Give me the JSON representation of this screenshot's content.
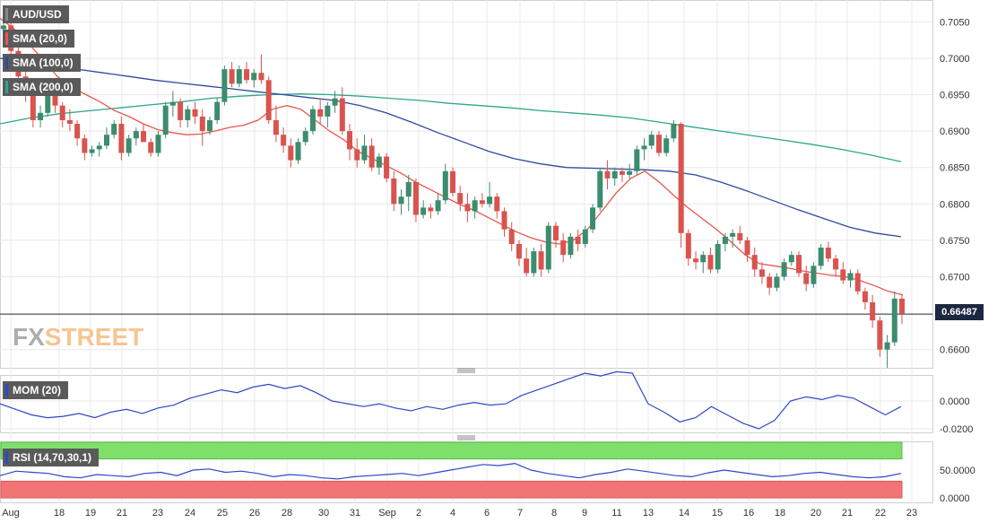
{
  "symbol_label": "AUD/USD",
  "indicator_labels": {
    "sma20": "SMA (20,0)",
    "sma100": "SMA (100,0)",
    "sma200": "SMA (200,0)",
    "mom": "MOM (20)",
    "rsi": "RSI (14,70,30,1)"
  },
  "last_price": "0.66487",
  "logo": {
    "fx": "FX",
    "street": "STREET"
  },
  "colors": {
    "up": "#3c8c6e",
    "down": "#d9534f",
    "sma20": "#e8574e",
    "sma100": "#2e4a9e",
    "sma200": "#2aa88a",
    "mom": "#2d47c8",
    "rsi": "#2d47c8",
    "rsi_overbought": "#7ee06b",
    "rsi_oversold": "#f27474",
    "grid": "#e8e8e8"
  },
  "chart_data": {
    "type": "candlestick",
    "title": "AUD/USD",
    "price_axis": {
      "ticks": [
        "0.7050",
        "0.7000",
        "0.6950",
        "0.6900",
        "0.6850",
        "0.6800",
        "0.6750",
        "0.6700",
        "0.6600"
      ],
      "ylim": [
        0.6575,
        0.708
      ]
    },
    "x_tick_labels": [
      "Aug",
      "18",
      "19",
      "21",
      "23",
      "24",
      "25",
      "26",
      "28",
      "30",
      "31",
      "Sep",
      "2",
      "4",
      "6",
      "7",
      "8",
      "9",
      "11",
      "13",
      "14",
      "15",
      "16",
      "18",
      "20",
      "21",
      "22",
      "23"
    ],
    "candles": [
      [
        0.704,
        0.706,
        0.702,
        0.7045
      ],
      [
        0.7045,
        0.7055,
        0.7,
        0.701
      ],
      [
        0.701,
        0.7015,
        0.696,
        0.6975
      ],
      [
        0.6975,
        0.6985,
        0.694,
        0.695
      ],
      [
        0.695,
        0.696,
        0.6905,
        0.6915
      ],
      [
        0.6915,
        0.6935,
        0.6905,
        0.6925
      ],
      [
        0.6925,
        0.6965,
        0.692,
        0.6955
      ],
      [
        0.6955,
        0.696,
        0.6925,
        0.6935
      ],
      [
        0.6935,
        0.694,
        0.6905,
        0.6915
      ],
      [
        0.6915,
        0.693,
        0.69,
        0.691
      ],
      [
        0.691,
        0.6915,
        0.688,
        0.689
      ],
      [
        0.689,
        0.6895,
        0.686,
        0.687
      ],
      [
        0.687,
        0.688,
        0.6865,
        0.6875
      ],
      [
        0.6875,
        0.6885,
        0.6865,
        0.688
      ],
      [
        0.688,
        0.6905,
        0.6875,
        0.6895
      ],
      [
        0.6895,
        0.6915,
        0.689,
        0.691
      ],
      [
        0.691,
        0.692,
        0.686,
        0.687
      ],
      [
        0.687,
        0.6895,
        0.6865,
        0.689
      ],
      [
        0.689,
        0.6905,
        0.688,
        0.69
      ],
      [
        0.69,
        0.691,
        0.6885,
        0.6885
      ],
      [
        0.6885,
        0.689,
        0.6865,
        0.687
      ],
      [
        0.687,
        0.69,
        0.6865,
        0.6895
      ],
      [
        0.6895,
        0.694,
        0.689,
        0.6935
      ],
      [
        0.6935,
        0.6955,
        0.692,
        0.694
      ],
      [
        0.694,
        0.6945,
        0.6905,
        0.6915
      ],
      [
        0.6915,
        0.6935,
        0.6905,
        0.693
      ],
      [
        0.693,
        0.694,
        0.691,
        0.692
      ],
      [
        0.692,
        0.693,
        0.688,
        0.69
      ],
      [
        0.69,
        0.692,
        0.6895,
        0.6915
      ],
      [
        0.6915,
        0.6945,
        0.691,
        0.694
      ],
      [
        0.694,
        0.699,
        0.6935,
        0.6985
      ],
      [
        0.6985,
        0.6995,
        0.696,
        0.6965
      ],
      [
        0.6965,
        0.699,
        0.696,
        0.6985
      ],
      [
        0.6985,
        0.6995,
        0.6965,
        0.697
      ],
      [
        0.697,
        0.6985,
        0.696,
        0.698
      ],
      [
        0.698,
        0.7005,
        0.6965,
        0.697
      ],
      [
        0.697,
        0.6975,
        0.691,
        0.6915
      ],
      [
        0.6915,
        0.6935,
        0.6885,
        0.6895
      ],
      [
        0.6895,
        0.6905,
        0.687,
        0.688
      ],
      [
        0.688,
        0.689,
        0.685,
        0.686
      ],
      [
        0.686,
        0.689,
        0.6855,
        0.6885
      ],
      [
        0.6885,
        0.6905,
        0.688,
        0.69
      ],
      [
        0.69,
        0.6935,
        0.6895,
        0.693
      ],
      [
        0.693,
        0.6945,
        0.691,
        0.692
      ],
      [
        0.692,
        0.694,
        0.6905,
        0.6935
      ],
      [
        0.6935,
        0.6955,
        0.6925,
        0.6945
      ],
      [
        0.6945,
        0.696,
        0.6895,
        0.69
      ],
      [
        0.69,
        0.691,
        0.686,
        0.6875
      ],
      [
        0.6875,
        0.689,
        0.685,
        0.686
      ],
      [
        0.686,
        0.6895,
        0.6855,
        0.688
      ],
      [
        0.688,
        0.689,
        0.6845,
        0.685
      ],
      [
        0.685,
        0.687,
        0.684,
        0.6865
      ],
      [
        0.6865,
        0.687,
        0.683,
        0.6835
      ],
      [
        0.6835,
        0.6845,
        0.679,
        0.68
      ],
      [
        0.68,
        0.682,
        0.6785,
        0.681
      ],
      [
        0.681,
        0.684,
        0.679,
        0.683
      ],
      [
        0.683,
        0.6835,
        0.6775,
        0.6785
      ],
      [
        0.6785,
        0.6805,
        0.678,
        0.6795
      ],
      [
        0.6795,
        0.68,
        0.678,
        0.679
      ],
      [
        0.679,
        0.6815,
        0.6785,
        0.6805
      ],
      [
        0.6805,
        0.6855,
        0.68,
        0.6845
      ],
      [
        0.6845,
        0.685,
        0.681,
        0.6815
      ],
      [
        0.6815,
        0.6825,
        0.679,
        0.68
      ],
      [
        0.68,
        0.6815,
        0.6775,
        0.679
      ],
      [
        0.679,
        0.681,
        0.678,
        0.6805
      ],
      [
        0.6805,
        0.6815,
        0.6795,
        0.68
      ],
      [
        0.68,
        0.683,
        0.6795,
        0.681
      ],
      [
        0.681,
        0.6815,
        0.678,
        0.679
      ],
      [
        0.679,
        0.6795,
        0.6755,
        0.6765
      ],
      [
        0.6765,
        0.6775,
        0.6735,
        0.6745
      ],
      [
        0.6745,
        0.675,
        0.6715,
        0.6725
      ],
      [
        0.6725,
        0.674,
        0.67,
        0.6705
      ],
      [
        0.6705,
        0.674,
        0.67,
        0.6735
      ],
      [
        0.6735,
        0.6745,
        0.67,
        0.671
      ],
      [
        0.671,
        0.6775,
        0.6705,
        0.677
      ],
      [
        0.677,
        0.6775,
        0.674,
        0.675
      ],
      [
        0.675,
        0.676,
        0.672,
        0.673
      ],
      [
        0.673,
        0.676,
        0.6725,
        0.6755
      ],
      [
        0.6755,
        0.6765,
        0.6735,
        0.6745
      ],
      [
        0.6745,
        0.677,
        0.674,
        0.6765
      ],
      [
        0.6765,
        0.68,
        0.676,
        0.6795
      ],
      [
        0.6795,
        0.685,
        0.679,
        0.6845
      ],
      [
        0.6845,
        0.686,
        0.682,
        0.6835
      ],
      [
        0.6835,
        0.685,
        0.6825,
        0.6845
      ],
      [
        0.6845,
        0.685,
        0.683,
        0.684
      ],
      [
        0.684,
        0.6855,
        0.6835,
        0.6845
      ],
      [
        0.6845,
        0.688,
        0.684,
        0.6875
      ],
      [
        0.6875,
        0.689,
        0.686,
        0.688
      ],
      [
        0.688,
        0.69,
        0.6875,
        0.6895
      ],
      [
        0.6895,
        0.69,
        0.6865,
        0.687
      ],
      [
        0.687,
        0.6895,
        0.6865,
        0.689
      ],
      [
        0.689,
        0.6915,
        0.6885,
        0.691
      ],
      [
        0.691,
        0.6912,
        0.674,
        0.676
      ],
      [
        0.676,
        0.6765,
        0.6715,
        0.6725
      ],
      [
        0.6725,
        0.6735,
        0.671,
        0.672
      ],
      [
        0.672,
        0.6735,
        0.6705,
        0.673
      ],
      [
        0.673,
        0.674,
        0.6705,
        0.671
      ],
      [
        0.671,
        0.675,
        0.6705,
        0.6745
      ],
      [
        0.6745,
        0.676,
        0.6735,
        0.6755
      ],
      [
        0.6755,
        0.6765,
        0.674,
        0.676
      ],
      [
        0.676,
        0.677,
        0.6745,
        0.675
      ],
      [
        0.675,
        0.6755,
        0.672,
        0.673
      ],
      [
        0.673,
        0.674,
        0.67,
        0.671
      ],
      [
        0.671,
        0.672,
        0.669,
        0.67
      ],
      [
        0.67,
        0.6705,
        0.6675,
        0.6685
      ],
      [
        0.6685,
        0.6705,
        0.668,
        0.67
      ],
      [
        0.67,
        0.6725,
        0.6695,
        0.672
      ],
      [
        0.672,
        0.6735,
        0.6715,
        0.673
      ],
      [
        0.673,
        0.6735,
        0.67,
        0.6705
      ],
      [
        0.6705,
        0.6715,
        0.668,
        0.669
      ],
      [
        0.669,
        0.672,
        0.6685,
        0.6715
      ],
      [
        0.6715,
        0.6745,
        0.671,
        0.674
      ],
      [
        0.674,
        0.6748,
        0.672,
        0.6725
      ],
      [
        0.6725,
        0.673,
        0.67,
        0.671
      ],
      [
        0.671,
        0.672,
        0.669,
        0.6695
      ],
      [
        0.6695,
        0.671,
        0.6685,
        0.6705
      ],
      [
        0.6705,
        0.671,
        0.6675,
        0.668
      ],
      [
        0.668,
        0.6685,
        0.6655,
        0.6665
      ],
      [
        0.6665,
        0.6675,
        0.663,
        0.664
      ],
      [
        0.664,
        0.6645,
        0.659,
        0.66
      ],
      [
        0.66,
        0.662,
        0.6575,
        0.661
      ],
      [
        0.661,
        0.668,
        0.6605,
        0.667
      ],
      [
        0.667,
        0.6675,
        0.6635,
        0.6649
      ]
    ],
    "series": [
      {
        "name": "SMA (20,0)",
        "values": [
          0.7055,
          0.704,
          0.702,
          0.6998,
          0.6975,
          0.696,
          0.695,
          0.694,
          0.6928,
          0.692,
          0.691,
          0.6902,
          0.6898,
          0.6895,
          0.6896,
          0.69,
          0.6905,
          0.6908,
          0.6915,
          0.693,
          0.6935,
          0.693,
          0.6915,
          0.69,
          0.6888,
          0.6872,
          0.6862,
          0.6852,
          0.6842,
          0.683,
          0.682,
          0.681,
          0.68,
          0.6792,
          0.6782,
          0.6772,
          0.6762,
          0.6754,
          0.6748,
          0.6745,
          0.675,
          0.6765,
          0.679,
          0.6815,
          0.6835,
          0.6845,
          0.683,
          0.6812,
          0.6795,
          0.678,
          0.6765,
          0.6748,
          0.673,
          0.6718,
          0.6715,
          0.6712,
          0.6708,
          0.6705,
          0.6702,
          0.67,
          0.6695,
          0.6688,
          0.668,
          0.6675
        ]
      },
      {
        "name": "SMA (100,0)",
        "values": [
          0.7,
          0.6995,
          0.699,
          0.6985,
          0.698,
          0.6975,
          0.697,
          0.6966,
          0.6962,
          0.6958,
          0.6954,
          0.695,
          0.6946,
          0.6942,
          0.6935,
          0.6925,
          0.6912,
          0.6898,
          0.6885,
          0.6872,
          0.6862,
          0.6855,
          0.685,
          0.6849,
          0.6848,
          0.6847,
          0.6845,
          0.684,
          0.683,
          0.6818,
          0.6805,
          0.6792,
          0.678,
          0.6768,
          0.676,
          0.6755
        ]
      },
      {
        "name": "SMA (200,0)",
        "values": [
          0.691,
          0.6918,
          0.6924,
          0.6928,
          0.6932,
          0.6936,
          0.694,
          0.6945,
          0.6948,
          0.695,
          0.6951,
          0.695,
          0.6948,
          0.6945,
          0.6942,
          0.6938,
          0.6935,
          0.6932,
          0.6928,
          0.6925,
          0.6922,
          0.6918,
          0.6912,
          0.6906,
          0.69,
          0.6894,
          0.6888,
          0.6882,
          0.6875,
          0.6867,
          0.6858
        ]
      },
      {
        "name": "MOM (20)",
        "values": [
          -0.002,
          -0.006,
          -0.01,
          -0.012,
          -0.011,
          -0.009,
          -0.012,
          -0.008,
          -0.006,
          -0.009,
          -0.005,
          -0.003,
          0.002,
          0.005,
          0.008,
          0.006,
          0.01,
          0.012,
          0.009,
          0.011,
          0.006,
          0.0,
          -0.002,
          -0.004,
          -0.002,
          -0.005,
          -0.007,
          -0.004,
          -0.006,
          -0.003,
          -0.001,
          -0.003,
          -0.002,
          0.004,
          0.008,
          0.012,
          0.016,
          0.02,
          0.018,
          0.021,
          0.02,
          -0.002,
          -0.008,
          -0.015,
          -0.012,
          -0.004,
          -0.01,
          -0.016,
          -0.02,
          -0.014,
          0.0,
          0.003,
          0.001,
          0.004,
          0.002,
          -0.004,
          -0.01,
          -0.004
        ]
      },
      {
        "name": "RSI (14,70,30,1)",
        "values": [
          40,
          48,
          46,
          44,
          38,
          36,
          42,
          40,
          38,
          44,
          46,
          40,
          50,
          52,
          46,
          48,
          44,
          38,
          42,
          40,
          36,
          34,
          38,
          40,
          42,
          44,
          40,
          45,
          50,
          55,
          60,
          58,
          62,
          50,
          44,
          40,
          36,
          42,
          46,
          52,
          48,
          44,
          40,
          38,
          45,
          50,
          46,
          42,
          38,
          40,
          44,
          46,
          42,
          38,
          36,
          38,
          44
        ]
      }
    ],
    "mom_axis": {
      "ticks": [
        "0.0000",
        "-0.0200"
      ]
    },
    "rsi_axis": {
      "ticks": [
        "50.0000",
        "0.0000"
      ]
    }
  }
}
